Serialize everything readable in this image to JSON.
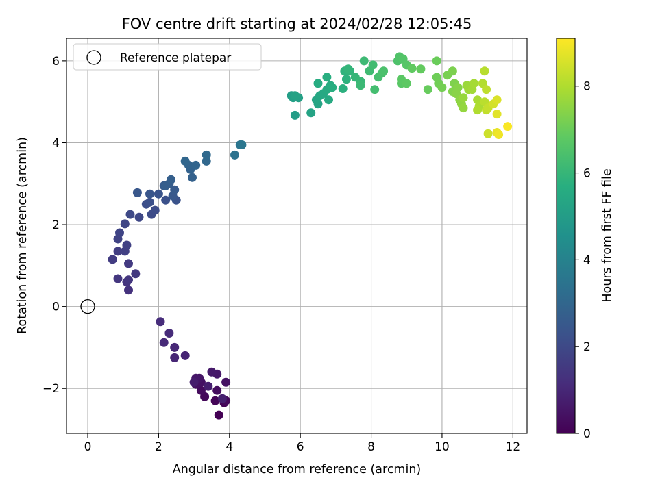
{
  "chart_data": {
    "type": "scatter",
    "title": "FOV centre drift starting at 2024/02/28 12:05:45",
    "xlabel": "Angular distance from reference (arcmin)",
    "ylabel": "Rotation from reference (arcmin)",
    "xlim": [
      -0.6,
      12.4
    ],
    "ylim": [
      -3.1,
      6.55
    ],
    "xticks": [
      0,
      2,
      4,
      6,
      8,
      10,
      12
    ],
    "yticks": [
      -2,
      0,
      2,
      4,
      6
    ],
    "grid": true,
    "colormap": "viridis",
    "colorbar": {
      "label": "Hours from first FF file",
      "range": [
        0,
        9.1
      ],
      "ticks": [
        0,
        2,
        4,
        6,
        8
      ]
    },
    "legend": {
      "position": "top-left",
      "entries": [
        {
          "label": "Reference platepar",
          "marker": "hollow-circle"
        }
      ]
    },
    "reference_point": {
      "x": 0,
      "y": 0
    },
    "points": [
      [
        3.7,
        -2.65,
        0.0
      ],
      [
        3.85,
        -2.35,
        0.05
      ],
      [
        3.6,
        -2.3,
        0.1
      ],
      [
        3.3,
        -2.2,
        0.15
      ],
      [
        3.9,
        -2.3,
        0.2
      ],
      [
        3.2,
        -2.05,
        0.25
      ],
      [
        3.65,
        -2.05,
        0.3
      ],
      [
        3.05,
        -1.9,
        0.35
      ],
      [
        3.2,
        -1.85,
        0.4
      ],
      [
        3.9,
        -1.85,
        0.45
      ],
      [
        3.15,
        -1.75,
        0.5
      ],
      [
        3.05,
        -1.75,
        0.55
      ],
      [
        3.65,
        -1.65,
        0.6
      ],
      [
        3.5,
        -1.6,
        0.65
      ],
      [
        3.0,
        -1.85,
        0.7
      ],
      [
        3.4,
        -1.95,
        0.75
      ],
      [
        3.8,
        -2.25,
        0.8
      ],
      [
        2.75,
        -1.2,
        0.9
      ],
      [
        2.45,
        -1.25,
        0.95
      ],
      [
        2.45,
        -1.0,
        1.0
      ],
      [
        2.15,
        -0.88,
        1.05
      ],
      [
        2.3,
        -0.65,
        1.1
      ],
      [
        2.05,
        -0.37,
        1.15
      ],
      [
        1.15,
        0.4,
        1.3
      ],
      [
        1.1,
        0.6,
        1.35
      ],
      [
        1.15,
        0.65,
        1.4
      ],
      [
        0.85,
        0.68,
        1.45
      ],
      [
        1.35,
        0.8,
        1.5
      ],
      [
        1.15,
        1.05,
        1.55
      ],
      [
        0.7,
        1.15,
        1.6
      ],
      [
        0.85,
        1.35,
        1.65
      ],
      [
        1.05,
        1.35,
        1.7
      ],
      [
        1.1,
        1.5,
        1.75
      ],
      [
        0.85,
        1.65,
        1.8
      ],
      [
        0.9,
        1.8,
        1.85
      ],
      [
        1.05,
        2.02,
        1.9
      ],
      [
        1.45,
        2.18,
        1.95
      ],
      [
        1.2,
        2.25,
        2.0
      ],
      [
        1.8,
        2.25,
        2.05
      ],
      [
        1.9,
        2.35,
        2.1
      ],
      [
        1.65,
        2.5,
        2.15
      ],
      [
        1.75,
        2.55,
        2.2
      ],
      [
        2.2,
        2.6,
        2.25
      ],
      [
        2.5,
        2.6,
        2.3
      ],
      [
        2.0,
        2.75,
        2.35
      ],
      [
        1.75,
        2.75,
        2.4
      ],
      [
        1.4,
        2.78,
        2.45
      ],
      [
        2.4,
        2.7,
        2.5
      ],
      [
        2.45,
        2.85,
        2.55
      ],
      [
        2.15,
        2.95,
        2.6
      ],
      [
        2.3,
        3.0,
        2.65
      ],
      [
        2.2,
        2.95,
        2.7
      ],
      [
        2.35,
        3.1,
        2.75
      ],
      [
        2.95,
        3.15,
        2.8
      ],
      [
        2.9,
        3.35,
        2.85
      ],
      [
        2.85,
        3.45,
        2.9
      ],
      [
        3.05,
        3.45,
        2.95
      ],
      [
        2.75,
        3.55,
        3.0
      ],
      [
        3.35,
        3.55,
        3.05
      ],
      [
        3.35,
        3.7,
        3.1
      ],
      [
        4.15,
        3.7,
        3.4
      ],
      [
        4.3,
        3.95,
        3.5
      ],
      [
        4.35,
        3.95,
        3.55
      ],
      [
        5.85,
        4.67,
        5.0
      ],
      [
        5.75,
        5.15,
        5.05
      ],
      [
        5.8,
        5.1,
        5.1
      ],
      [
        5.95,
        5.1,
        5.15
      ],
      [
        5.85,
        5.15,
        5.2
      ],
      [
        6.3,
        4.73,
        5.25
      ],
      [
        6.5,
        4.95,
        5.3
      ],
      [
        6.45,
        5.05,
        5.35
      ],
      [
        6.55,
        5.15,
        5.4
      ],
      [
        6.65,
        5.2,
        5.45
      ],
      [
        6.8,
        5.05,
        5.5
      ],
      [
        6.75,
        5.3,
        5.55
      ],
      [
        6.85,
        5.4,
        5.6
      ],
      [
        6.5,
        5.45,
        5.6
      ],
      [
        6.9,
        5.35,
        5.65
      ],
      [
        6.75,
        5.6,
        5.7
      ],
      [
        7.2,
        5.32,
        5.75
      ],
      [
        7.3,
        5.55,
        5.8
      ],
      [
        7.25,
        5.75,
        5.85
      ],
      [
        7.4,
        5.75,
        5.9
      ],
      [
        7.35,
        5.8,
        5.95
      ],
      [
        7.55,
        5.6,
        6.0
      ],
      [
        7.7,
        5.5,
        6.05
      ],
      [
        7.7,
        5.4,
        6.1
      ],
      [
        7.8,
        6.0,
        6.15
      ],
      [
        7.95,
        5.75,
        6.2
      ],
      [
        8.05,
        5.9,
        6.25
      ],
      [
        8.1,
        5.3,
        6.3
      ],
      [
        8.2,
        5.6,
        6.35
      ],
      [
        8.3,
        5.7,
        6.4
      ],
      [
        8.35,
        5.75,
        6.45
      ],
      [
        8.75,
        6.0,
        6.5
      ],
      [
        8.8,
        6.1,
        6.55
      ],
      [
        8.9,
        6.05,
        6.6
      ],
      [
        9.0,
        5.9,
        6.65
      ],
      [
        8.85,
        5.45,
        6.7
      ],
      [
        8.85,
        5.55,
        6.75
      ],
      [
        9.0,
        5.45,
        6.8
      ],
      [
        9.15,
        5.82,
        6.85
      ],
      [
        9.4,
        5.8,
        6.9
      ],
      [
        9.6,
        5.3,
        6.95
      ],
      [
        9.85,
        6.0,
        7.0
      ],
      [
        9.85,
        5.6,
        7.05
      ],
      [
        9.9,
        5.45,
        7.1
      ],
      [
        10.0,
        5.35,
        7.15
      ],
      [
        10.15,
        5.65,
        7.2
      ],
      [
        10.3,
        5.75,
        7.25
      ],
      [
        10.35,
        5.45,
        7.3
      ],
      [
        10.3,
        5.25,
        7.35
      ],
      [
        10.45,
        5.35,
        7.4
      ],
      [
        10.4,
        5.2,
        7.45
      ],
      [
        10.5,
        5.05,
        7.5
      ],
      [
        10.55,
        4.95,
        7.55
      ],
      [
        10.6,
        4.85,
        7.6
      ],
      [
        10.6,
        5.1,
        7.65
      ],
      [
        10.7,
        5.4,
        7.7
      ],
      [
        10.75,
        5.3,
        7.75
      ],
      [
        10.85,
        5.3,
        7.8
      ],
      [
        10.9,
        5.45,
        7.85
      ],
      [
        11.0,
        5.05,
        7.9
      ],
      [
        11.05,
        4.9,
        7.95
      ],
      [
        11.0,
        4.8,
        8.0
      ],
      [
        11.15,
        5.45,
        8.05
      ],
      [
        11.2,
        5.75,
        8.1
      ],
      [
        11.2,
        5.0,
        8.15
      ],
      [
        11.25,
        5.3,
        8.2
      ],
      [
        11.25,
        4.8,
        8.25
      ],
      [
        11.3,
        4.85,
        8.3
      ],
      [
        11.3,
        4.22,
        8.4
      ],
      [
        11.45,
        4.95,
        8.5
      ],
      [
        11.55,
        5.05,
        8.6
      ],
      [
        11.55,
        4.7,
        8.7
      ],
      [
        11.55,
        4.25,
        8.8
      ],
      [
        11.6,
        4.2,
        8.9
      ],
      [
        11.85,
        4.4,
        9.05
      ]
    ]
  }
}
